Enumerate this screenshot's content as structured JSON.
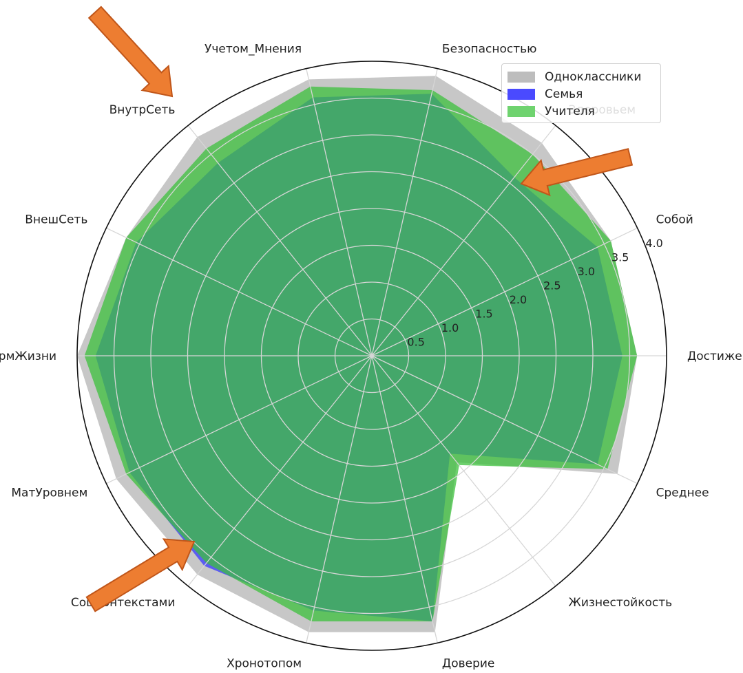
{
  "chart_data": {
    "type": "radar",
    "categories": [
      "Достижениями",
      "Собой",
      "Здоровьем",
      "Безопасностью",
      "Учетом_Мнения",
      "ВнутрСеть",
      "ВнешСеть",
      "НормЖизни",
      "МатУровнем",
      "СоцКонтекстами",
      "Хронотопом",
      "Доверие",
      "Жизнестойкость",
      "Среднее"
    ],
    "r_ticks": [
      "0.5",
      "1.0",
      "1.5",
      "2.0",
      "2.5",
      "3.0",
      "3.5",
      "4.0"
    ],
    "rlim": [
      0,
      4.0
    ],
    "grid": true,
    "legend_position": "top-right",
    "series": [
      {
        "name": "Одноклассники",
        "color": "#bdbdbd",
        "values": [
          3.6,
          3.6,
          3.7,
          3.9,
          3.85,
          3.8,
          3.7,
          4.0,
          3.85,
          3.8,
          3.85,
          3.85,
          1.85,
          3.7
        ]
      },
      {
        "name": "Семья",
        "color": "#3333ff",
        "values": [
          3.4,
          3.4,
          3.1,
          3.65,
          3.6,
          3.35,
          3.55,
          3.75,
          3.65,
          3.65,
          3.55,
          3.7,
          1.7,
          3.4
        ]
      },
      {
        "name": "Учителя",
        "color": "#44bb44",
        "values": [
          3.6,
          3.6,
          3.5,
          3.7,
          3.75,
          3.6,
          3.7,
          3.9,
          3.7,
          3.6,
          3.7,
          3.7,
          1.9,
          3.55
        ]
      }
    ]
  }
}
